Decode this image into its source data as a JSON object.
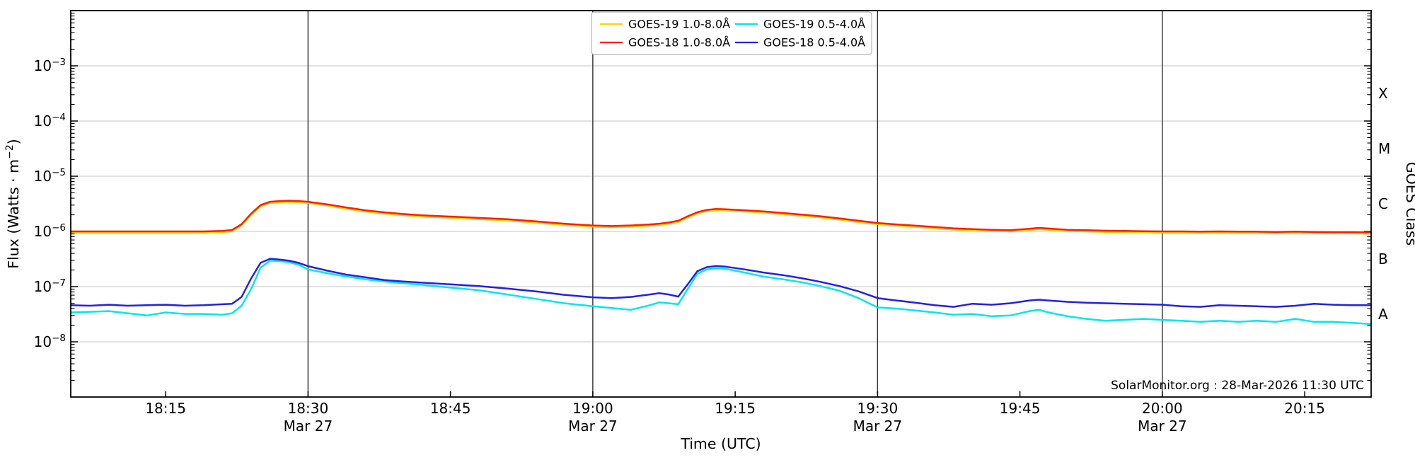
{
  "figure": {
    "source_note": "SolarMonitor.org : 28-Mar-2026 11:30 UTC"
  },
  "chart_data": {
    "type": "line",
    "title": "",
    "xlabel": "Time (UTC)",
    "ylabel_left": {
      "prefix": "Flux (Watts · m",
      "sup": "−2",
      "suffix": ")"
    },
    "ylabel_right": "GOES Class",
    "x_axis": {
      "unit": "minutes after 18:00 UTC",
      "range": [
        5,
        142
      ],
      "major_ticks": [
        {
          "t": 15,
          "label": "18:15"
        },
        {
          "t": 30,
          "label": "18:30"
        },
        {
          "t": 45,
          "label": "18:45"
        },
        {
          "t": 60,
          "label": "19:00"
        },
        {
          "t": 75,
          "label": "19:15"
        },
        {
          "t": 90,
          "label": "19:30"
        },
        {
          "t": 105,
          "label": "19:45"
        },
        {
          "t": 120,
          "label": "20:00"
        },
        {
          "t": 135,
          "label": "20:15"
        }
      ],
      "day_lines": [
        {
          "t": 30,
          "label": "Mar 27"
        },
        {
          "t": 60,
          "label": "Mar 27"
        },
        {
          "t": 90,
          "label": "Mar 27"
        },
        {
          "t": 120,
          "label": "Mar 27"
        }
      ]
    },
    "y_axis": {
      "scale": "log",
      "range": [
        1e-09,
        0.01
      ],
      "labeled_exponents": [
        -3,
        -4,
        -5,
        -6,
        -7,
        -8
      ],
      "gridline_exponents": [
        -3,
        -4,
        -5,
        -6,
        -7,
        -8
      ],
      "grid": true
    },
    "right_axis_classes": [
      {
        "label": "X",
        "log10_flux": -3.5
      },
      {
        "label": "M",
        "log10_flux": -4.5
      },
      {
        "label": "C",
        "log10_flux": -5.5
      },
      {
        "label": "B",
        "log10_flux": -6.5
      },
      {
        "label": "A",
        "log10_flux": -7.5
      }
    ],
    "legend_position": "top-center",
    "legend_columns": 2,
    "series": [
      {
        "id": "goes19-long",
        "name": "GOES-19 1.0-8.0Å",
        "color": "#ffd400",
        "x": [
          5,
          7,
          9,
          11,
          13,
          15,
          17,
          19,
          21,
          22,
          23,
          24,
          25,
          26,
          27,
          28,
          29,
          30,
          32,
          34,
          36,
          38,
          40,
          42,
          45,
          48,
          51,
          54,
          57,
          60,
          62,
          64,
          66,
          67,
          68,
          69,
          70,
          71,
          72,
          73,
          74,
          76,
          78,
          80,
          82,
          84,
          86,
          88,
          90,
          92,
          94,
          96,
          98,
          100,
          102,
          104,
          106,
          107,
          108,
          110,
          112,
          114,
          116,
          118,
          120,
          122,
          124,
          126,
          128,
          130,
          132,
          134,
          136,
          138,
          140,
          142
        ],
        "y": [
          9.5e-07,
          9.5e-07,
          9.5e-07,
          9.5e-07,
          9.5e-07,
          9.5e-07,
          9.5e-07,
          9.5e-07,
          9.7e-07,
          1.01e-06,
          1.28e-06,
          2e-06,
          2.85e-06,
          3.28e-06,
          3.37e-06,
          3.42e-06,
          3.37e-06,
          3.28e-06,
          2.95e-06,
          2.58e-06,
          2.3e-06,
          2.11e-06,
          1.97e-06,
          1.86e-06,
          1.77e-06,
          1.67e-06,
          1.58e-06,
          1.44e-06,
          1.31e-06,
          1.22e-06,
          1.19e-06,
          1.22e-06,
          1.27e-06,
          1.31e-06,
          1.38e-06,
          1.48e-06,
          1.79e-06,
          2.11e-06,
          2.33e-06,
          2.42e-06,
          2.39e-06,
          2.3e-06,
          2.19e-06,
          2.05e-06,
          1.92e-06,
          1.79e-06,
          1.63e-06,
          1.48e-06,
          1.35e-06,
          1.27e-06,
          1.21e-06,
          1.14e-06,
          1.08e-06,
          1.05e-06,
          1.02e-06,
          1e-06,
          1.06e-06,
          1.1e-06,
          1.07e-06,
          1.02e-06,
          1e-06,
          9.8e-07,
          9.7e-07,
          9.6e-07,
          9.5e-07,
          9.5e-07,
          9.4e-07,
          9.5e-07,
          9.4e-07,
          9.4e-07,
          9.3e-07,
          9.4e-07,
          9.3e-07,
          9.2e-07,
          9.2e-07,
          9.1e-07
        ]
      },
      {
        "id": "goes18-long",
        "name": "GOES-18 1.0-8.0Å",
        "color": "#ff1e00",
        "x": [
          5,
          7,
          9,
          11,
          13,
          15,
          17,
          19,
          21,
          22,
          23,
          24,
          25,
          26,
          27,
          28,
          29,
          30,
          32,
          34,
          36,
          38,
          40,
          42,
          45,
          48,
          51,
          54,
          57,
          60,
          62,
          64,
          66,
          67,
          68,
          69,
          70,
          71,
          72,
          73,
          74,
          76,
          78,
          80,
          82,
          84,
          86,
          88,
          90,
          92,
          94,
          96,
          98,
          100,
          102,
          104,
          106,
          107,
          108,
          110,
          112,
          114,
          116,
          118,
          120,
          122,
          124,
          126,
          128,
          130,
          132,
          134,
          136,
          138,
          140,
          142
        ],
        "y": [
          1e-06,
          1e-06,
          1e-06,
          1e-06,
          1e-06,
          1e-06,
          1e-06,
          1e-06,
          1.02e-06,
          1.06e-06,
          1.35e-06,
          2.1e-06,
          3e-06,
          3.45e-06,
          3.55e-06,
          3.6e-06,
          3.55e-06,
          3.45e-06,
          3.1e-06,
          2.72e-06,
          2.42e-06,
          2.22e-06,
          2.07e-06,
          1.96e-06,
          1.86e-06,
          1.76e-06,
          1.66e-06,
          1.52e-06,
          1.38e-06,
          1.28e-06,
          1.25e-06,
          1.28e-06,
          1.34e-06,
          1.38e-06,
          1.45e-06,
          1.56e-06,
          1.88e-06,
          2.22e-06,
          2.45e-06,
          2.55e-06,
          2.52e-06,
          2.42e-06,
          2.3e-06,
          2.16e-06,
          2.02e-06,
          1.88e-06,
          1.72e-06,
          1.56e-06,
          1.42e-06,
          1.34e-06,
          1.27e-06,
          1.2e-06,
          1.14e-06,
          1.1e-06,
          1.07e-06,
          1.05e-06,
          1.12e-06,
          1.16e-06,
          1.13e-06,
          1.07e-06,
          1.05e-06,
          1.03e-06,
          1.02e-06,
          1.01e-06,
          1e-06,
          1e-06,
          9.9e-07,
          1e-06,
          9.9e-07,
          9.9e-07,
          9.8e-07,
          9.9e-07,
          9.8e-07,
          9.7e-07,
          9.7e-07,
          9.6e-07
        ]
      },
      {
        "id": "goes19-short",
        "name": "GOES-19 0.5-4.0Å",
        "color": "#00e6f0",
        "x": [
          5,
          7,
          9,
          11,
          13,
          15,
          17,
          19,
          21,
          22,
          23,
          24,
          25,
          26,
          27,
          28,
          29,
          30,
          32,
          34,
          36,
          38,
          40,
          42,
          45,
          48,
          51,
          54,
          57,
          60,
          62,
          64,
          66,
          67,
          68,
          69,
          70,
          71,
          72,
          73,
          74,
          76,
          78,
          80,
          82,
          84,
          86,
          88,
          90,
          92,
          94,
          96,
          98,
          100,
          102,
          104,
          106,
          107,
          108,
          110,
          112,
          114,
          116,
          118,
          120,
          122,
          124,
          126,
          128,
          130,
          132,
          134,
          136,
          138,
          140,
          142
        ],
        "y": [
          3.4e-08,
          3.5e-08,
          3.6e-08,
          3.3e-08,
          3e-08,
          3.4e-08,
          3.2e-08,
          3.2e-08,
          3.1e-08,
          3.3e-08,
          4.5e-08,
          9e-08,
          2.2e-07,
          2.95e-07,
          2.9e-07,
          2.75e-07,
          2.5e-07,
          2.05e-07,
          1.75e-07,
          1.52e-07,
          1.36e-07,
          1.24e-07,
          1.15e-07,
          1.08e-07,
          9.6e-08,
          8.6e-08,
          7.2e-08,
          6e-08,
          5e-08,
          4.4e-08,
          4.1e-08,
          3.8e-08,
          4.6e-08,
          5.2e-08,
          5e-08,
          4.8e-08,
          9e-08,
          1.7e-07,
          2.05e-07,
          2.15e-07,
          2.1e-07,
          1.8e-07,
          1.52e-07,
          1.36e-07,
          1.2e-07,
          1.02e-07,
          8.4e-08,
          6.2e-08,
          4.2e-08,
          4e-08,
          3.7e-08,
          3.4e-08,
          3.1e-08,
          3.2e-08,
          2.9e-08,
          3e-08,
          3.6e-08,
          3.8e-08,
          3.4e-08,
          2.9e-08,
          2.6e-08,
          2.4e-08,
          2.5e-08,
          2.6e-08,
          2.5e-08,
          2.4e-08,
          2.3e-08,
          2.4e-08,
          2.3e-08,
          2.4e-08,
          2.3e-08,
          2.6e-08,
          2.3e-08,
          2.3e-08,
          2.2e-08,
          2.1e-08
        ]
      },
      {
        "id": "goes18-short",
        "name": "GOES-18 0.5-4.0Å",
        "color": "#2222dd",
        "x": [
          5,
          7,
          9,
          11,
          13,
          15,
          17,
          19,
          21,
          22,
          23,
          24,
          25,
          26,
          27,
          28,
          29,
          30,
          32,
          34,
          36,
          38,
          40,
          42,
          45,
          48,
          51,
          54,
          57,
          60,
          62,
          64,
          66,
          67,
          68,
          69,
          70,
          71,
          72,
          73,
          74,
          76,
          78,
          80,
          82,
          84,
          86,
          88,
          90,
          92,
          94,
          96,
          98,
          100,
          102,
          104,
          106,
          107,
          108,
          110,
          112,
          114,
          116,
          118,
          120,
          122,
          124,
          126,
          128,
          130,
          132,
          134,
          136,
          138,
          140,
          142
        ],
        "y": [
          4.6e-08,
          4.5e-08,
          4.7e-08,
          4.5e-08,
          4.6e-08,
          4.7e-08,
          4.5e-08,
          4.6e-08,
          4.8e-08,
          4.9e-08,
          6.5e-08,
          1.4e-07,
          2.7e-07,
          3.2e-07,
          3.1e-07,
          2.95e-07,
          2.7e-07,
          2.35e-07,
          1.95e-07,
          1.65e-07,
          1.48e-07,
          1.32e-07,
          1.24e-07,
          1.18e-07,
          1.1e-07,
          1.02e-07,
          9.2e-08,
          8.2e-08,
          7.1e-08,
          6.4e-08,
          6.2e-08,
          6.5e-08,
          7.2e-08,
          7.6e-08,
          7.2e-08,
          6.6e-08,
          1.1e-07,
          1.9e-07,
          2.25e-07,
          2.36e-07,
          2.3e-07,
          2.05e-07,
          1.8e-07,
          1.62e-07,
          1.42e-07,
          1.22e-07,
          1.02e-07,
          8.2e-08,
          6.2e-08,
          5.6e-08,
          5.1e-08,
          4.6e-08,
          4.3e-08,
          4.9e-08,
          4.7e-08,
          5e-08,
          5.6e-08,
          5.8e-08,
          5.6e-08,
          5.3e-08,
          5.1e-08,
          5e-08,
          4.9e-08,
          4.8e-08,
          4.7e-08,
          4.4e-08,
          4.3e-08,
          4.6e-08,
          4.5e-08,
          4.4e-08,
          4.3e-08,
          4.5e-08,
          4.9e-08,
          4.7e-08,
          4.6e-08,
          4.6e-08
        ]
      }
    ]
  },
  "style": {
    "grid_color": "#c6c6c6",
    "dayline_color": "#2e2e2e",
    "axis_color": "#000000",
    "legend_border_color": "#b8b8b8",
    "text_color": "#000000"
  }
}
